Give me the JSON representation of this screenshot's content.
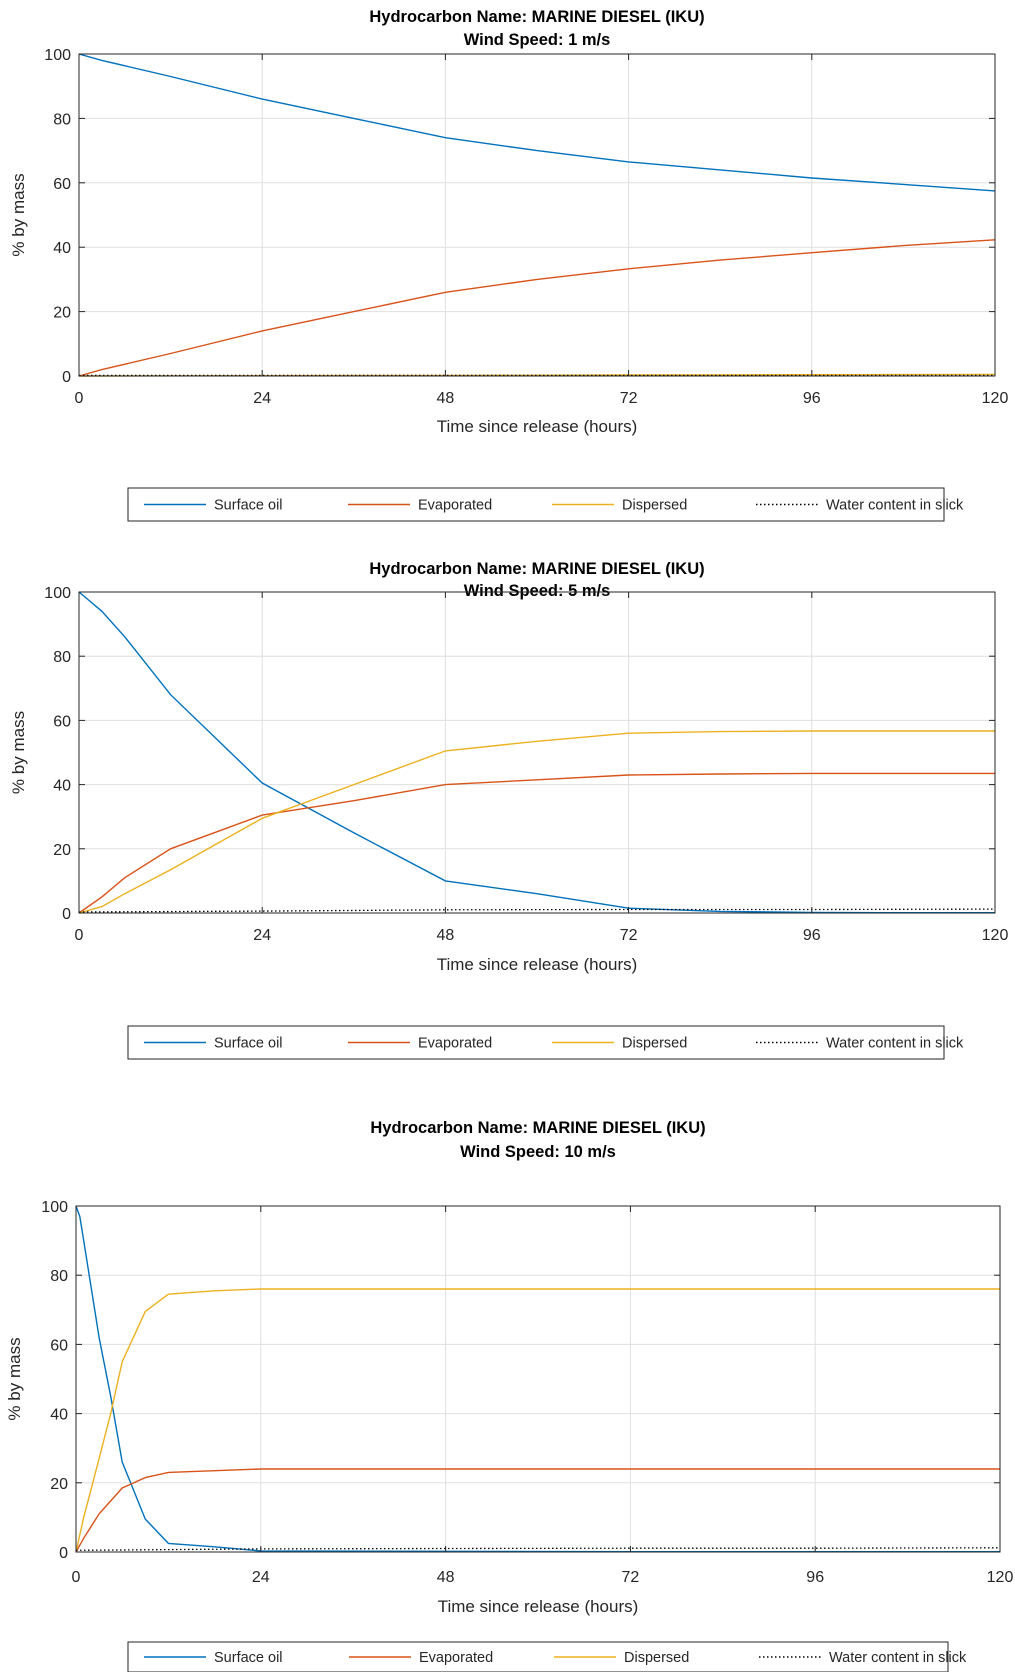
{
  "chart_data": [
    {
      "type": "line",
      "title": [
        "Hydrocarbon Name: MARINE DIESEL (IKU)",
        "Wind Speed: 1 m/s"
      ],
      "xlabel": "Time since release (hours)",
      "ylabel": "% by mass",
      "xlim": [
        0,
        120
      ],
      "ylim": [
        0,
        100
      ],
      "xticks": [
        0,
        24,
        48,
        72,
        96,
        120
      ],
      "yticks": [
        0,
        20,
        40,
        60,
        80,
        100
      ],
      "grid": true,
      "legend": "bottom",
      "series": [
        {
          "name": "Surface oil",
          "color": "#0072BD",
          "style": "solid",
          "x": [
            0,
            3,
            12,
            24,
            36,
            48,
            60,
            72,
            84,
            96,
            108,
            120
          ],
          "y": [
            100,
            98,
            93,
            86,
            80,
            74,
            70,
            66.5,
            64,
            61.5,
            59.5,
            57.5
          ]
        },
        {
          "name": "Evaporated",
          "color": "#D95319",
          "style": "solid",
          "x": [
            0,
            3,
            12,
            24,
            36,
            48,
            60,
            72,
            84,
            96,
            108,
            120
          ],
          "y": [
            0,
            2,
            7,
            14,
            20,
            26,
            30,
            33.3,
            36,
            38.3,
            40.5,
            42.3
          ]
        },
        {
          "name": "Dispersed",
          "color": "#EDB120",
          "style": "solid",
          "x": [
            0,
            24,
            48,
            72,
            96,
            120
          ],
          "y": [
            0,
            0.1,
            0.2,
            0.3,
            0.4,
            0.5
          ]
        },
        {
          "name": "Water content in slick",
          "color": "#000000",
          "style": "dotted",
          "x": [
            0,
            24,
            48,
            72,
            96,
            120
          ],
          "y": [
            0.2,
            0.2,
            0.2,
            0.2,
            0.2,
            0.2
          ]
        }
      ]
    },
    {
      "type": "line",
      "title": [
        "Hydrocarbon Name: MARINE DIESEL (IKU)",
        "Wind Speed: 5 m/s"
      ],
      "xlabel": "Time since release (hours)",
      "ylabel": "% by mass",
      "xlim": [
        0,
        120
      ],
      "ylim": [
        0,
        100
      ],
      "xticks": [
        0,
        24,
        48,
        72,
        96,
        120
      ],
      "yticks": [
        0,
        20,
        40,
        60,
        80,
        100
      ],
      "grid": true,
      "legend": "bottom",
      "series": [
        {
          "name": "Surface oil",
          "color": "#0072BD",
          "style": "solid",
          "x": [
            0,
            1,
            3,
            6,
            12,
            24,
            36,
            48,
            60,
            72,
            84,
            96,
            108,
            120
          ],
          "y": [
            100,
            98,
            94,
            86,
            68,
            40.5,
            25,
            10,
            6,
            1.5,
            0.5,
            0.2,
            0.1,
            0.1
          ]
        },
        {
          "name": "Evaporated",
          "color": "#D95319",
          "style": "solid",
          "x": [
            0,
            3,
            6,
            12,
            24,
            36,
            48,
            60,
            72,
            84,
            96,
            108,
            120
          ],
          "y": [
            0,
            5,
            11,
            20,
            30.5,
            35,
            40,
            41.5,
            43,
            43.3,
            43.5,
            43.5,
            43.5
          ]
        },
        {
          "name": "Dispersed",
          "color": "#EDB120",
          "style": "solid",
          "x": [
            0,
            3,
            6,
            12,
            24,
            36,
            48,
            60,
            72,
            84,
            96,
            108,
            120
          ],
          "y": [
            0,
            2,
            6,
            13.5,
            29.5,
            40,
            50.5,
            53.5,
            56,
            56.5,
            56.7,
            56.7,
            56.7
          ]
        },
        {
          "name": "Water content in slick",
          "color": "#000000",
          "style": "dotted",
          "x": [
            0,
            24,
            48,
            72,
            96,
            120
          ],
          "y": [
            0.3,
            0.6,
            1.0,
            1.1,
            1.1,
            1.2
          ]
        }
      ]
    },
    {
      "type": "line",
      "title": [
        "Hydrocarbon Name: MARINE DIESEL (IKU)",
        "Wind Speed: 10 m/s"
      ],
      "xlabel": "Time since release (hours)",
      "ylabel": "% by mass",
      "xlim": [
        0,
        120
      ],
      "ylim": [
        0,
        100
      ],
      "xticks": [
        0,
        24,
        48,
        72,
        96,
        120
      ],
      "yticks": [
        0,
        20,
        40,
        60,
        80,
        100
      ],
      "grid": true,
      "legend": "bottom",
      "series": [
        {
          "name": "Surface oil",
          "color": "#0072BD",
          "style": "solid",
          "x": [
            0,
            0.5,
            1,
            2,
            3,
            4.5,
            6,
            9,
            12,
            18,
            24,
            48,
            72,
            96,
            120
          ],
          "y": [
            100,
            97,
            90,
            76,
            62,
            45,
            26,
            9.5,
            2.5,
            1.5,
            0.3,
            0.2,
            0.1,
            0.1,
            0.1
          ]
        },
        {
          "name": "Evaporated",
          "color": "#D95319",
          "style": "solid",
          "x": [
            0,
            1,
            3,
            6,
            9,
            12,
            18,
            24,
            48,
            72,
            96,
            120
          ],
          "y": [
            0,
            4,
            11,
            18.5,
            21.5,
            23,
            23.5,
            24,
            24,
            24,
            24,
            24
          ]
        },
        {
          "name": "Dispersed",
          "color": "#EDB120",
          "style": "solid",
          "x": [
            0,
            1,
            3,
            4.5,
            6,
            9,
            12,
            18,
            24,
            48,
            72,
            96,
            120
          ],
          "y": [
            0,
            10,
            27,
            40,
            55,
            69.5,
            74.5,
            75.5,
            76,
            76,
            76,
            76,
            76
          ]
        },
        {
          "name": "Water content in slick",
          "color": "#000000",
          "style": "dotted",
          "x": [
            0,
            24,
            48,
            72,
            96,
            120
          ],
          "y": [
            0.5,
            0.9,
            1.0,
            1.1,
            1.1,
            1.2
          ]
        }
      ]
    }
  ]
}
